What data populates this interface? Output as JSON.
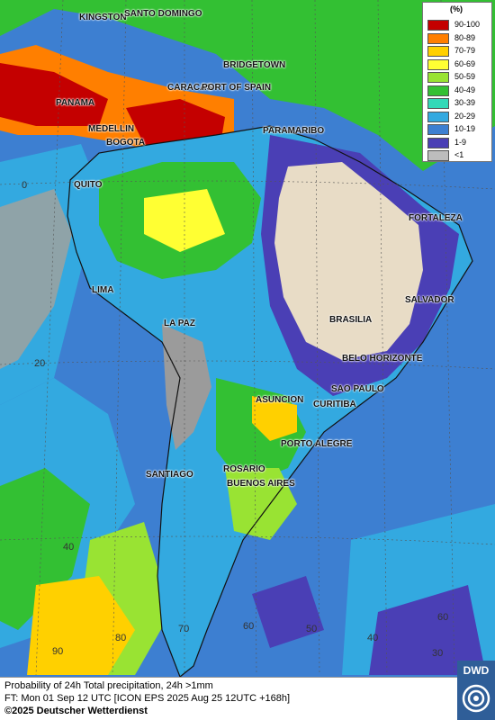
{
  "cities": [
    {
      "name": "KINGSTON"
    },
    {
      "name": "SANTO DOMINGO"
    },
    {
      "name": "BRIDGETOWN"
    },
    {
      "name": "PANAMA"
    },
    {
      "name": "CARACAS"
    },
    {
      "name": "PORT OF SPAIN"
    },
    {
      "name": "MEDELLIN"
    },
    {
      "name": "BOGOTA"
    },
    {
      "name": "PARAMARIBO"
    },
    {
      "name": "QUITO"
    },
    {
      "name": "FORTALEZA"
    },
    {
      "name": "LIMA"
    },
    {
      "name": "SALVADOR"
    },
    {
      "name": "BRASILIA"
    },
    {
      "name": "LA PAZ"
    },
    {
      "name": "BELO HORIZONTE"
    },
    {
      "name": "SAO PAULO"
    },
    {
      "name": "ASUNCION"
    },
    {
      "name": "CURITIBA"
    },
    {
      "name": "PORTO ALEGRE"
    },
    {
      "name": "ROSARIO"
    },
    {
      "name": "SANTIAGO"
    },
    {
      "name": "BUENOS AIRES"
    }
  ],
  "grid_labels": {
    "lat": [
      "0",
      "20",
      "40",
      "60"
    ],
    "lon": [
      "90",
      "80",
      "70",
      "60",
      "50",
      "40",
      "30"
    ]
  },
  "legend": {
    "unit": "(%)",
    "items": [
      {
        "label": "90-100",
        "color": "#c40000"
      },
      {
        "label": "80-89",
        "color": "#ff7f00"
      },
      {
        "label": "70-79",
        "color": "#ffd000"
      },
      {
        "label": "60-69",
        "color": "#ffff33"
      },
      {
        "label": "50-59",
        "color": "#99e333"
      },
      {
        "label": "40-49",
        "color": "#33c033"
      },
      {
        "label": "30-39",
        "color": "#33d9b8"
      },
      {
        "label": "20-29",
        "color": "#33a9e0"
      },
      {
        "label": "10-19",
        "color": "#3d7fd1"
      },
      {
        "label": "1-9",
        "color": "#4a3fb5"
      },
      {
        "label": "<1",
        "color": "#bdbdbd"
      }
    ]
  },
  "footer": {
    "line1": "Probability of 24h Total precipitation, 24h >1mm",
    "line2": "FT: Mon 01 Sep 12 UTC [ICON EPS 2025 Aug 25 12UTC +168h]",
    "copyright": "©2025 Deutscher Wetterdienst"
  },
  "logo": {
    "text": "DWD"
  }
}
